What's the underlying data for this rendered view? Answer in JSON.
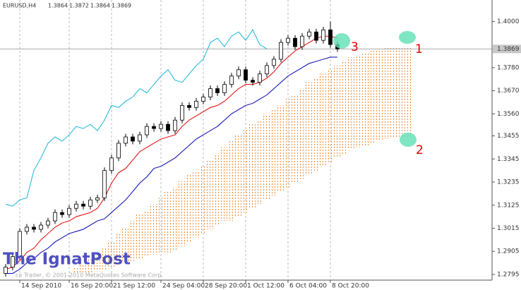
{
  "chart_data": {
    "type": "candlestick",
    "symbol": "EURUSD,H4",
    "ohlc_header": [
      1.3864,
      1.3872,
      1.3864,
      1.3869
    ],
    "current_price": 1.3869,
    "xlim": [
      -0.8,
      68.9
    ],
    "ylim": [
      1.2768,
      1.4092
    ],
    "yticks": [
      {
        "value": 1.4,
        "label": "1.4000"
      },
      {
        "value": 1.378,
        "label": "1.3780"
      },
      {
        "value": 1.367,
        "label": "1.3670"
      },
      {
        "value": 1.356,
        "label": "1.3560"
      },
      1.3455,
      1.3345,
      1.3235,
      1.3125,
      1.3015,
      1.2905,
      1.2795
    ],
    "xticks": [
      {
        "value": 2,
        "label": "14 Sep 2010"
      },
      {
        "value": 9,
        "label": "16 Sep 20:00"
      },
      {
        "value": 15,
        "label": "21 Sep 12:00"
      },
      {
        "value": 22,
        "label": "24 Sep 04:00"
      },
      {
        "value": 28,
        "label": "28 Sep 20:00"
      },
      {
        "value": 34,
        "label": "1 Oct 12:00"
      },
      {
        "value": 40,
        "label": "6 Oct 04:00"
      },
      {
        "value": 46,
        "label": "8 Oct 20:00"
      }
    ],
    "grid": true,
    "candle_color": "#000000",
    "open": [
      1.28,
      1.283,
      1.288,
      1.3,
      1.302,
      1.301,
      1.303,
      1.305,
      1.309,
      1.308,
      1.311,
      1.313,
      1.312,
      1.315,
      1.316,
      1.329,
      1.335,
      1.342,
      1.345,
      1.343,
      1.346,
      1.35,
      1.349,
      1.351,
      1.348,
      1.353,
      1.36,
      1.359,
      1.362,
      1.364,
      1.368,
      1.366,
      1.37,
      1.374,
      1.377,
      1.372,
      1.371,
      1.375,
      1.379,
      1.382,
      1.39,
      1.392,
      1.388,
      1.393,
      1.395,
      1.391,
      1.396,
      1.389
    ],
    "high": [
      1.2845,
      1.2895,
      1.3015,
      1.3035,
      1.3035,
      1.3045,
      1.3065,
      1.3105,
      1.3105,
      1.3125,
      1.3145,
      1.3145,
      1.3165,
      1.3175,
      1.3305,
      1.3365,
      1.3435,
      1.3465,
      1.3465,
      1.3475,
      1.3515,
      1.3515,
      1.3525,
      1.3525,
      1.3545,
      1.3615,
      1.3615,
      1.3635,
      1.3655,
      1.3695,
      1.3695,
      1.3715,
      1.3755,
      1.3785,
      1.3785,
      1.3735,
      1.3765,
      1.3805,
      1.3835,
      1.3915,
      1.3935,
      1.3935,
      1.3945,
      1.3965,
      1.3965,
      1.3975,
      1.4,
      1.3905
    ],
    "low": [
      1.2785,
      1.2815,
      1.2865,
      1.2985,
      1.2995,
      1.2995,
      1.3015,
      1.3035,
      1.3065,
      1.3065,
      1.3095,
      1.3105,
      1.3105,
      1.3135,
      1.3145,
      1.3275,
      1.3335,
      1.3405,
      1.3415,
      1.3415,
      1.3445,
      1.3475,
      1.3475,
      1.3465,
      1.3465,
      1.3515,
      1.3575,
      1.3575,
      1.3605,
      1.3625,
      1.3645,
      1.3645,
      1.3685,
      1.3725,
      1.3705,
      1.3695,
      1.3695,
      1.3735,
      1.3775,
      1.3805,
      1.3885,
      1.3865,
      1.3865,
      1.3915,
      1.3895,
      1.3895,
      1.3875,
      1.3855
    ],
    "close": [
      1.283,
      1.288,
      1.3,
      1.302,
      1.301,
      1.303,
      1.305,
      1.309,
      1.308,
      1.311,
      1.313,
      1.312,
      1.315,
      1.316,
      1.329,
      1.335,
      1.342,
      1.345,
      1.343,
      1.346,
      1.35,
      1.349,
      1.351,
      1.348,
      1.353,
      1.36,
      1.359,
      1.362,
      1.364,
      1.368,
      1.366,
      1.37,
      1.374,
      1.377,
      1.372,
      1.371,
      1.375,
      1.379,
      1.382,
      1.39,
      1.392,
      1.388,
      1.393,
      1.395,
      1.391,
      1.396,
      1.389,
      1.3869
    ],
    "series": [
      {
        "color": "#e00000",
        "values": [
          1.282,
          1.283,
          1.286,
          1.29,
          1.292,
          1.296,
          1.299,
          1.302,
          1.304,
          1.305,
          1.307,
          1.308,
          1.309,
          1.311,
          1.316,
          1.323,
          1.328,
          1.33,
          1.334,
          1.338,
          1.34,
          1.342,
          1.344,
          1.345,
          1.346,
          1.35,
          1.353,
          1.355,
          1.357,
          1.359,
          1.36,
          1.362,
          1.365,
          1.368,
          1.37,
          1.37,
          1.371,
          1.373,
          1.376,
          1.38,
          1.383,
          1.386,
          1.388,
          1.39,
          1.392,
          1.393,
          1.393,
          1.392
        ]
      },
      {
        "color": "#0000b0",
        "values": [
          1.28,
          1.28,
          1.282,
          1.285,
          1.287,
          1.29,
          1.292,
          1.295,
          1.297,
          1.299,
          1.3,
          1.301,
          1.303,
          1.305,
          1.306,
          1.309,
          1.312,
          1.315,
          1.319,
          1.323,
          1.326,
          1.33,
          1.331,
          1.333,
          1.335,
          1.338,
          1.341,
          1.344,
          1.346,
          1.348,
          1.35,
          1.353,
          1.356,
          1.358,
          1.36,
          1.361,
          1.363,
          1.365,
          1.368,
          1.371,
          1.374,
          1.376,
          1.378,
          1.38,
          1.381,
          1.382,
          1.383,
          1.383
        ]
      },
      {
        "color": "#1ab4d8",
        "values": [
          1.313,
          1.312,
          1.315,
          1.316,
          1.329,
          1.335,
          1.342,
          1.345,
          1.343,
          1.346,
          1.35,
          1.349,
          1.351,
          1.348,
          1.353,
          1.36,
          1.359,
          1.362,
          1.364,
          1.368,
          1.366,
          1.37,
          1.374,
          1.377,
          1.372,
          1.371,
          1.375,
          1.379,
          1.382,
          1.39,
          1.392,
          1.388,
          1.393,
          1.395,
          1.391,
          1.396,
          1.389,
          1.3869,
          null,
          null,
          null,
          null,
          null,
          null,
          null,
          null,
          null,
          null
        ]
      }
    ],
    "cloud": {
      "color": "#f08a30",
      "span_a": [
        null,
        null,
        null,
        null,
        null,
        null,
        null,
        null,
        null,
        null,
        1.283,
        1.284,
        1.287,
        1.289,
        1.292,
        1.295,
        1.299,
        1.302,
        1.305,
        1.308,
        1.31,
        1.313,
        1.316,
        1.319,
        1.321,
        1.324,
        1.327,
        1.329,
        1.331,
        1.334,
        1.337,
        1.34,
        1.343,
        1.346,
        1.349,
        1.351,
        1.353,
        1.356,
        1.358,
        1.36,
        1.363,
        1.365,
        1.368,
        1.371,
        1.373,
        1.375,
        1.377,
        1.379,
        1.381,
        1.383,
        1.384,
        1.385,
        1.386,
        1.387,
        1.3875,
        1.388,
        1.388,
        1.388
      ],
      "span_b": [
        null,
        null,
        null,
        null,
        null,
        null,
        null,
        null,
        null,
        null,
        1.28,
        1.28,
        1.28,
        1.281,
        1.282,
        1.283,
        1.284,
        1.285,
        1.286,
        1.287,
        1.288,
        1.289,
        1.29,
        1.29,
        1.291,
        1.293,
        1.295,
        1.297,
        1.299,
        1.301,
        1.303,
        1.305,
        1.305,
        1.307,
        1.309,
        1.311,
        1.313,
        1.315,
        1.317,
        1.319,
        1.321,
        1.323,
        1.325,
        1.327,
        1.329,
        1.331,
        1.333,
        1.335,
        1.337,
        1.339,
        1.34,
        1.341,
        1.342,
        1.343,
        1.344,
        1.3445,
        1.345,
        1.345
      ]
    },
    "annotations": [
      "1",
      "2",
      "3"
    ],
    "watermark": "The IgnatPost",
    "copyright": "co Trader, © 2001-2010 MetaQuotes Software Corp."
  }
}
